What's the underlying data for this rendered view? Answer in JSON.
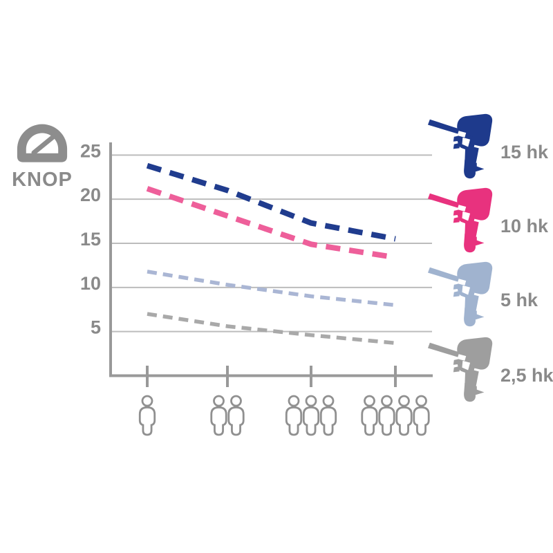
{
  "unit_box": {
    "label": "KNOP",
    "icon": "speedometer-icon"
  },
  "colors": {
    "navy": "#203c8e",
    "pink": "#e8327e",
    "pink_line": "#ee5f9a",
    "steel": "#a0b3cf",
    "steel_line": "#aab6d4",
    "gray": "#9e9e9e",
    "gray_line": "#a9a9a9",
    "axis": "#999999",
    "grid": "#bcbcbc",
    "text": "#8a8a8a",
    "person_outline": "#909090"
  },
  "legend": [
    {
      "label": "15 hk",
      "color": "#1e3a8c"
    },
    {
      "label": "10 hk",
      "color": "#e8327e"
    },
    {
      "label": "5 hk",
      "color": "#a0b3cf"
    },
    {
      "label": "2,5 hk",
      "color": "#9e9e9e"
    }
  ],
  "chart_data": {
    "type": "line",
    "title": "",
    "ylabel": "KNOP",
    "xlabel": "",
    "x_axis_pictogram": "person-icon-groups",
    "categories": [
      1,
      2,
      3,
      4
    ],
    "yticks": [
      25,
      20,
      15,
      10,
      5
    ],
    "ylim": [
      0,
      26.5
    ],
    "grid": true,
    "legend_position": "right",
    "line_style": "dashed",
    "series": [
      {
        "name": "15 hk",
        "color": "#203c8e",
        "values": [
          23.8,
          21.0,
          17.3,
          15.5
        ],
        "width": 8,
        "dash": "21 13"
      },
      {
        "name": "10 hk",
        "color": "#ee5f9a",
        "values": [
          21.2,
          18.1,
          14.9,
          13.4
        ],
        "width": 8,
        "dash": "21 13"
      },
      {
        "name": "5 hk",
        "color": "#aab6d4",
        "values": [
          11.8,
          10.3,
          9.0,
          8.0
        ],
        "width": 5.5,
        "dash": "14 9"
      },
      {
        "name": "2,5 hk",
        "color": "#a9a9a9",
        "values": [
          7.0,
          5.6,
          4.6,
          3.7
        ],
        "width": 5.5,
        "dash": "14 9"
      }
    ]
  }
}
